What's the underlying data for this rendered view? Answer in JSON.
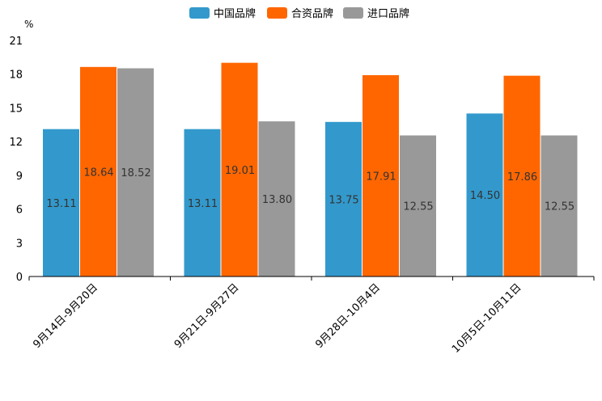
{
  "chart_data": {
    "type": "bar",
    "title": "",
    "xlabel": "",
    "ylabel": "%",
    "ylim": [
      0,
      21
    ],
    "yticks": [
      0,
      3,
      6,
      9,
      12,
      15,
      18,
      21
    ],
    "grid": false,
    "legend_position": "top-center",
    "categories": [
      "9月14日-9月20日",
      "9月21日-9月27日",
      "9月28日-10月4日",
      "10月5日-10月11日"
    ],
    "series": [
      {
        "name": "中国品牌",
        "color": "#3399cc",
        "values": [
          13.11,
          13.11,
          13.75,
          14.5
        ],
        "labels": [
          "13.11",
          "13.11",
          "13.75",
          "14.50"
        ]
      },
      {
        "name": "合资品牌",
        "color": "#ff6600",
        "values": [
          18.64,
          19.01,
          17.91,
          17.86
        ],
        "labels": [
          "18.64",
          "19.01",
          "17.91",
          "17.86"
        ]
      },
      {
        "name": "进口品牌",
        "color": "#999999",
        "values": [
          18.52,
          13.8,
          12.55,
          12.55
        ],
        "labels": [
          "18.52",
          "13.80",
          "12.55",
          "12.55"
        ]
      }
    ]
  }
}
